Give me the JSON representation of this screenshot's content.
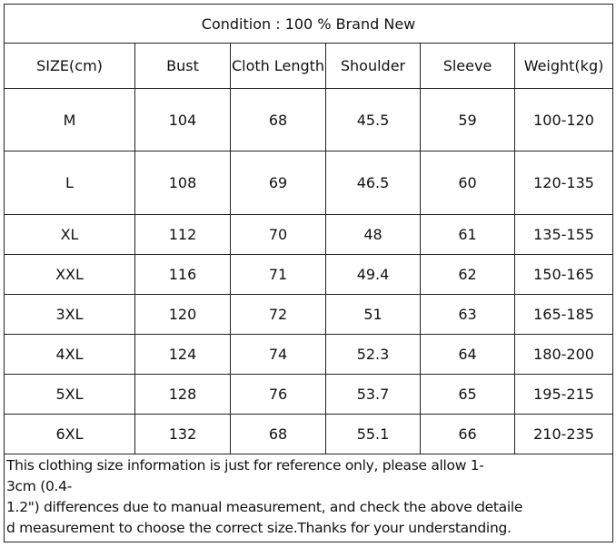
{
  "table": {
    "title": "Condition : 100 % Brand New",
    "header": [
      "SIZE(cm)",
      "Bust",
      "Cloth Length",
      "Shoulder",
      "Sleeve",
      "Weight(kg)"
    ],
    "rows": [
      [
        "M",
        "104",
        "68",
        "45.5",
        "59",
        "100-120"
      ],
      [
        "L",
        "108",
        "69",
        "46.5",
        "60",
        "120-135"
      ],
      [
        "XL",
        "112",
        "70",
        "48",
        "61",
        "135-155"
      ],
      [
        "XXL",
        "116",
        "71",
        "49.4",
        "62",
        "150-165"
      ],
      [
        "3XL",
        "120",
        "72",
        "51",
        "63",
        "165-185"
      ],
      [
        "4XL",
        "124",
        "74",
        "52.3",
        "64",
        "180-200"
      ],
      [
        "5XL",
        "128",
        "76",
        "53.7",
        "65",
        "195-215"
      ],
      [
        "6XL",
        "132",
        "68",
        "55.1",
        "66",
        "210-235"
      ]
    ],
    "note": [
      "This clothing size information is just for reference only, please allow 1-",
      "3cm (0.4-",
      "1.2\") differences due to manual measurement, and check the above detaile",
      "d measurement to choose the correct size.Thanks for your understanding."
    ]
  }
}
